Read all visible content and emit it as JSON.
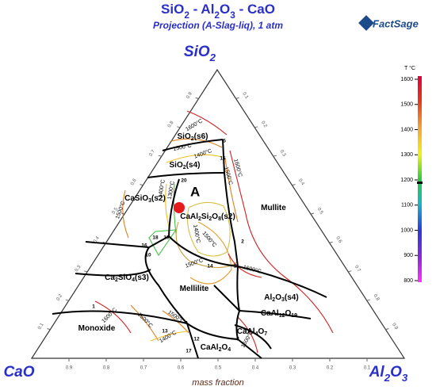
{
  "header": {
    "title": "SiO2 - Al2O3 - CaO",
    "subtitle": "Projection (A-Slag-liq), 1 atm",
    "logo": "FactSage"
  },
  "vertices": {
    "top": "SiO2",
    "left": "CaO",
    "right": "Al2O3"
  },
  "axis_label": "mass fraction",
  "marker": "A",
  "ticks": {
    "bottom": [
      "0.9",
      "0.8",
      "0.7",
      "0.6",
      "0.5",
      "0.4",
      "0.3",
      "0.2",
      "0.1"
    ],
    "left": [
      "0.1",
      "0.2",
      "0.3",
      "0.4",
      "0.5",
      "0.6",
      "0.7",
      "0.8",
      "0.9"
    ],
    "right": [
      "0.1",
      "0.2",
      "0.3",
      "0.4",
      "0.5",
      "0.6",
      "0.7",
      "0.8",
      "0.9"
    ]
  },
  "phases": [
    "SiO2(s6)",
    "SiO2(s4)",
    "CaSiO3(s2)",
    "CaAl2Si2O8(s2)",
    "Mullite",
    "Ca2SiO4(s3)",
    "Mellilite",
    "Al2O3(s4)",
    "CaAl12O19",
    "CaAl4O7",
    "CaAl2O4",
    "Monoxide"
  ],
  "isotherm_labels": [
    "1600°C",
    "1500°C",
    "1400°C",
    "1600°C",
    "1500°C",
    "1400°C",
    "1300°C",
    "1500°C",
    "1400°C",
    "1500°C",
    "1500°C",
    "1600°C",
    "1600°C",
    "1500°C",
    "1500°C",
    "1400°C",
    "1600°C"
  ],
  "points": [
    "5",
    "15",
    "20",
    "2",
    "16",
    "18",
    "19",
    "10",
    "14",
    "11",
    "1",
    "4",
    "3",
    "12",
    "13",
    "17"
  ],
  "colorbar": {
    "title": "T °C",
    "labels": [
      "1600",
      "1500",
      "1400",
      "1300",
      "1200",
      "1100",
      "1000",
      "900",
      "800"
    ]
  }
}
